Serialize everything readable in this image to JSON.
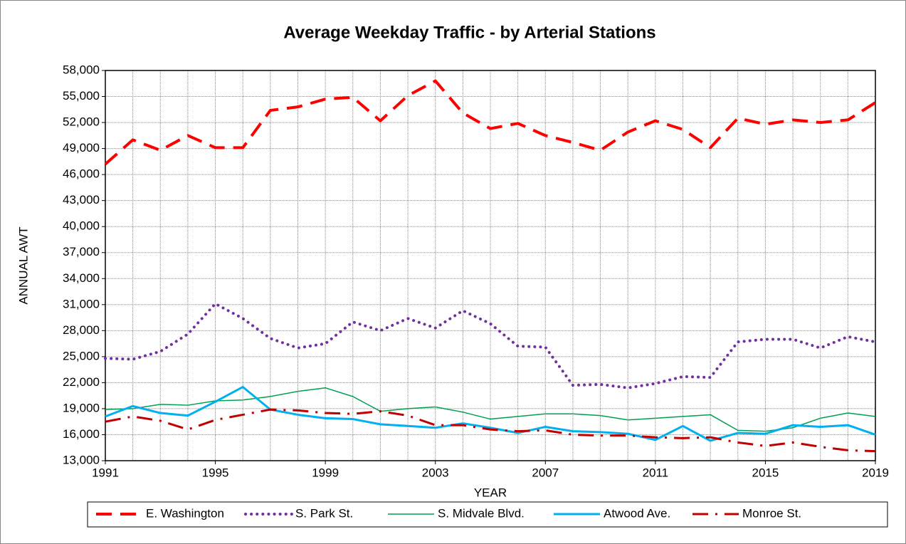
{
  "chart_data": {
    "type": "line",
    "title": "Average Weekday Traffic  - by Arterial Stations",
    "x_label": "YEAR",
    "y_label": "ANNUAL AWT",
    "x": [
      1991,
      1992,
      1993,
      1994,
      1995,
      1996,
      1997,
      1998,
      1999,
      2000,
      2001,
      2002,
      2003,
      2004,
      2005,
      2006,
      2007,
      2008,
      2009,
      2010,
      2011,
      2012,
      2013,
      2014,
      2015,
      2016,
      2017,
      2018,
      2019
    ],
    "xlim": [
      1991,
      2019
    ],
    "xticks": [
      1991,
      1995,
      1999,
      2003,
      2007,
      2011,
      2015,
      2019
    ],
    "xminorticks": [
      1991,
      1992,
      1993,
      1994,
      1995,
      1996,
      1997,
      1998,
      1999,
      2000,
      2001,
      2002,
      2003,
      2004,
      2005,
      2006,
      2007,
      2008,
      2009,
      2010,
      2011,
      2012,
      2013,
      2014,
      2015,
      2016,
      2017,
      2018,
      2019
    ],
    "ylim": [
      13000,
      58000
    ],
    "yticks": [
      {
        "value": 13000,
        "label": "13,000"
      },
      {
        "value": 16000,
        "label": "16,000"
      },
      {
        "value": 19000,
        "label": "19,000"
      },
      {
        "value": 22000,
        "label": "22,000"
      },
      {
        "value": 25000,
        "label": "25,000"
      },
      {
        "value": 28000,
        "label": "28,000"
      },
      {
        "value": 31000,
        "label": "31,000"
      },
      {
        "value": 34000,
        "label": "34,000"
      },
      {
        "value": 37000,
        "label": "37,000"
      },
      {
        "value": 40000,
        "label": "40,000"
      },
      {
        "value": 43000,
        "label": "43,000"
      },
      {
        "value": 46000,
        "label": "46,000"
      },
      {
        "value": 49000,
        "label": "49,000"
      },
      {
        "value": 52000,
        "label": "52,000"
      },
      {
        "value": 55000,
        "label": "55,000"
      },
      {
        "value": 58000,
        "label": "58,000"
      }
    ],
    "grid": true,
    "legend": "bottom",
    "series": [
      {
        "name": "E. Washington",
        "color": "#ff0000",
        "line_style": "dashed",
        "line_width": 4,
        "values": [
          47200,
          50000,
          48800,
          50500,
          49100,
          49100,
          53400,
          53800,
          54700,
          54900,
          52200,
          55100,
          56800,
          53100,
          51300,
          51900,
          50500,
          49700,
          48800,
          50900,
          52200,
          51200,
          49100,
          52500,
          51800,
          52300,
          52000,
          52300,
          54300
        ]
      },
      {
        "name": "S. Park St.",
        "color": "#7030a0",
        "line_style": "dotted",
        "line_width": 4,
        "values": [
          24800,
          24700,
          25600,
          27600,
          31100,
          29400,
          27100,
          26000,
          26500,
          29000,
          28000,
          29400,
          28300,
          30300,
          28800,
          26200,
          26100,
          21700,
          21800,
          21400,
          21900,
          22700,
          22600,
          26700,
          27000,
          27000,
          26000,
          27300,
          26700
        ]
      },
      {
        "name": "S. Midvale Blvd.",
        "color": "#00a050",
        "line_style": "solid",
        "line_width": 1.5,
        "values": [
          18900,
          19000,
          19500,
          19400,
          19900,
          20000,
          20400,
          21000,
          21400,
          20400,
          18700,
          19000,
          19200,
          18600,
          17800,
          18100,
          18400,
          18400,
          18200,
          17700,
          17900,
          18100,
          18300,
          16500,
          16400,
          16800,
          17900,
          18500,
          18100
        ]
      },
      {
        "name": "Atwood Ave.",
        "color": "#00b0f0",
        "line_style": "solid",
        "line_width": 3,
        "values": [
          18100,
          19300,
          18500,
          18200,
          19800,
          21500,
          18900,
          18300,
          17900,
          17800,
          17200,
          17000,
          16800,
          17300,
          16800,
          16200,
          16900,
          16400,
          16300,
          16100,
          15400,
          17000,
          15300,
          16200,
          16100,
          17100,
          16900,
          17100,
          16000
        ]
      },
      {
        "name": "Monroe St.",
        "color": "#c00000",
        "line_style": "dashdot",
        "line_width": 3,
        "values": [
          17500,
          18100,
          17600,
          16600,
          17700,
          18300,
          18900,
          18800,
          18500,
          18400,
          18700,
          18200,
          17100,
          17100,
          16600,
          16400,
          16500,
          16000,
          15900,
          15900,
          15700,
          15600,
          15700,
          15100,
          14700,
          15100,
          14600,
          14200,
          14100
        ]
      }
    ]
  }
}
